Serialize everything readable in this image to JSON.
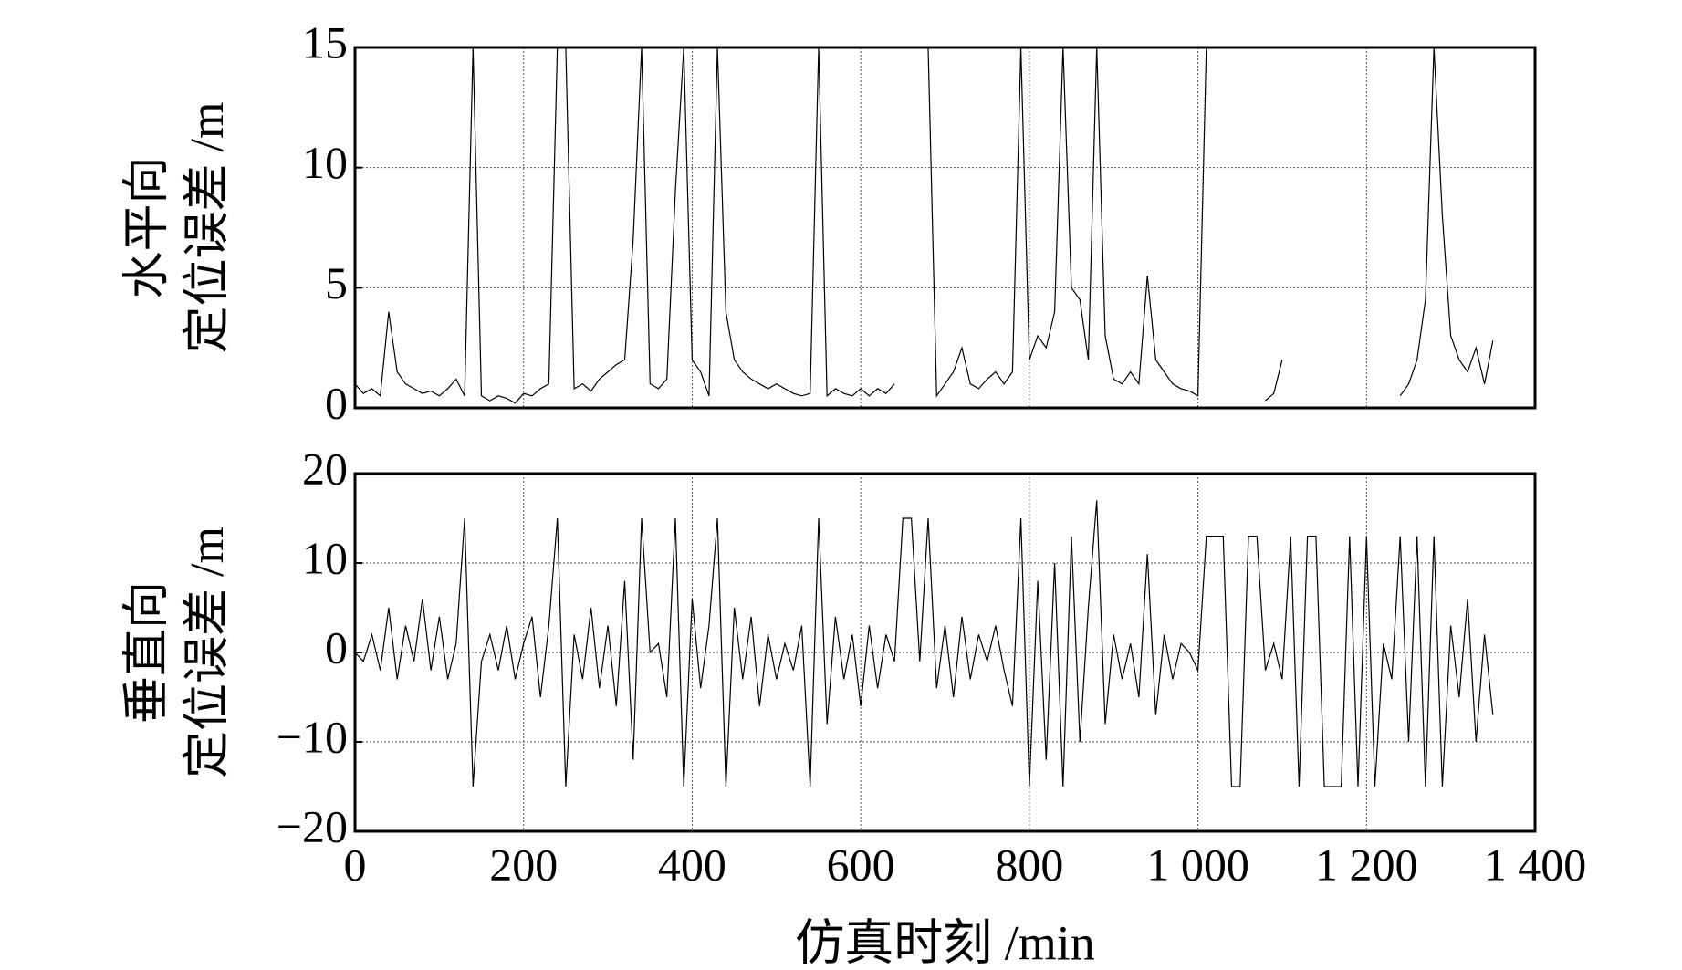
{
  "chart_data": [
    {
      "type": "line",
      "y_label": [
        "水平向",
        "定位误差 /m"
      ],
      "x": [
        0,
        10,
        20,
        30,
        40,
        50,
        60,
        70,
        80,
        90,
        100,
        110,
        120,
        130,
        140,
        150,
        160,
        170,
        180,
        190,
        200,
        210,
        220,
        230,
        240,
        250,
        260,
        270,
        280,
        290,
        300,
        310,
        320,
        330,
        340,
        350,
        360,
        370,
        380,
        390,
        400,
        410,
        420,
        430,
        440,
        450,
        460,
        470,
        480,
        490,
        500,
        510,
        520,
        530,
        540,
        550,
        560,
        570,
        580,
        590,
        600,
        610,
        620,
        630,
        640,
        650,
        660,
        670,
        680,
        690,
        700,
        710,
        720,
        730,
        740,
        750,
        760,
        770,
        780,
        790,
        800,
        810,
        820,
        830,
        840,
        850,
        860,
        870,
        880,
        890,
        900,
        910,
        920,
        930,
        940,
        950,
        960,
        970,
        980,
        990,
        1000,
        1010,
        1020,
        1030,
        1040,
        1050,
        1060,
        1070,
        1080,
        1090,
        1100,
        1110,
        1120,
        1130,
        1140,
        1150,
        1160,
        1170,
        1180,
        1190,
        1200,
        1210,
        1220,
        1230,
        1240,
        1250,
        1260,
        1270,
        1280,
        1290,
        1300,
        1310,
        1320,
        1330,
        1340,
        1350
      ],
      "values": [
        1,
        0.6,
        0.8,
        0.5,
        4,
        1.5,
        1,
        0.8,
        0.6,
        0.7,
        0.5,
        0.8,
        1.2,
        0.5,
        15,
        0.5,
        0.3,
        0.5,
        0.4,
        0.2,
        0.6,
        0.5,
        0.8,
        1,
        15,
        15,
        0.8,
        1,
        0.7,
        1.2,
        1.5,
        1.8,
        2,
        7,
        15,
        1,
        0.8,
        1.2,
        9,
        15,
        2,
        1.5,
        0.5,
        15,
        4,
        2,
        1.5,
        1.2,
        1,
        0.8,
        1,
        0.8,
        0.6,
        0.5,
        0.6,
        15,
        0.5,
        0.8,
        0.6,
        0.5,
        0.8,
        0.5,
        0.8,
        0.6,
        1,
        null,
        null,
        null,
        15,
        0.5,
        1,
        1.5,
        2.5,
        1,
        0.8,
        1.2,
        1.5,
        1,
        1.5,
        15,
        2,
        3,
        2.5,
        4,
        15,
        5,
        4.5,
        2,
        15,
        3,
        1.2,
        1,
        1.5,
        1,
        5.5,
        2,
        1.5,
        1,
        0.8,
        0.7,
        0.5,
        15,
        null,
        null,
        null,
        null,
        null,
        null,
        0.3,
        0.6,
        2,
        null,
        null,
        null,
        null,
        null,
        null,
        null,
        null,
        null,
        null,
        null,
        null,
        null,
        0.5,
        1,
        2,
        4.5,
        15,
        8,
        3,
        2,
        1.5,
        2.5,
        1,
        2.8
      ],
      "color": "#000000",
      "xlim": [
        0,
        1400
      ],
      "xticks": [
        0,
        200,
        400,
        600,
        800,
        1000,
        1200,
        1400
      ],
      "ylim": [
        0,
        15
      ],
      "yticks": [
        0,
        5,
        10,
        15
      ],
      "grid": true
    },
    {
      "type": "line",
      "y_label": [
        "垂直向",
        "定位误差 /m"
      ],
      "x_label": "仿真时刻 /min",
      "x": [
        0,
        10,
        20,
        30,
        40,
        50,
        60,
        70,
        80,
        90,
        100,
        110,
        120,
        130,
        140,
        150,
        160,
        170,
        180,
        190,
        200,
        210,
        220,
        230,
        240,
        250,
        260,
        270,
        280,
        290,
        300,
        310,
        320,
        330,
        340,
        350,
        360,
        370,
        380,
        390,
        400,
        410,
        420,
        430,
        440,
        450,
        460,
        470,
        480,
        490,
        500,
        510,
        520,
        530,
        540,
        550,
        560,
        570,
        580,
        590,
        600,
        610,
        620,
        630,
        640,
        650,
        660,
        670,
        680,
        690,
        700,
        710,
        720,
        730,
        740,
        750,
        760,
        770,
        780,
        790,
        800,
        810,
        820,
        830,
        840,
        850,
        860,
        870,
        880,
        890,
        900,
        910,
        920,
        930,
        940,
        950,
        960,
        970,
        980,
        990,
        1000,
        1010,
        1020,
        1030,
        1040,
        1050,
        1060,
        1070,
        1080,
        1090,
        1100,
        1110,
        1120,
        1130,
        1140,
        1150,
        1160,
        1170,
        1180,
        1190,
        1200,
        1210,
        1220,
        1230,
        1240,
        1250,
        1260,
        1270,
        1280,
        1290,
        1300,
        1310,
        1320,
        1330,
        1340,
        1350
      ],
      "values": [
        0,
        -1,
        2,
        -2,
        5,
        -3,
        3,
        -1,
        6,
        -2,
        4,
        -3,
        1,
        15,
        -15,
        -1,
        2,
        -2,
        3,
        -3,
        1,
        4,
        -5,
        3,
        15,
        -15,
        2,
        -3,
        5,
        -4,
        3,
        -6,
        8,
        -12,
        15,
        0,
        1,
        -5,
        15,
        -15,
        6,
        -4,
        3,
        15,
        -15,
        5,
        -3,
        4,
        -6,
        2,
        -3,
        1,
        -2,
        3,
        -15,
        15,
        -8,
        4,
        -3,
        2,
        -6,
        3,
        -4,
        2,
        -1,
        15,
        15,
        -1,
        15,
        -4,
        3,
        -5,
        4,
        -3,
        2,
        -1,
        3,
        -2,
        -6,
        15,
        -15,
        8,
        -12,
        10,
        -15,
        13,
        -10,
        5,
        17,
        -8,
        2,
        -3,
        1,
        -5,
        11,
        -7,
        2,
        -3,
        1,
        0,
        -2,
        13,
        13,
        13,
        -15,
        -15,
        13,
        13,
        -2,
        1,
        -3,
        13,
        -15,
        13,
        13,
        -15,
        -15,
        -15,
        13,
        -15,
        13,
        -15,
        1,
        -3,
        13,
        -10,
        13,
        -15,
        13,
        -15,
        3,
        -5,
        6,
        -10,
        2,
        -7
      ],
      "color": "#000000",
      "xlim": [
        0,
        1400
      ],
      "xticks": [
        0,
        200,
        400,
        600,
        800,
        {
          "value": 1000,
          "label": "1 000"
        },
        {
          "value": 1200,
          "label": "1 200"
        },
        {
          "value": 1400,
          "label": "1 400"
        }
      ],
      "ylim": [
        -20,
        20
      ],
      "yticks": [
        {
          "value": -20,
          "label": "−20"
        },
        {
          "value": -10,
          "label": "−10"
        },
        0,
        10,
        20
      ],
      "grid": true
    }
  ]
}
